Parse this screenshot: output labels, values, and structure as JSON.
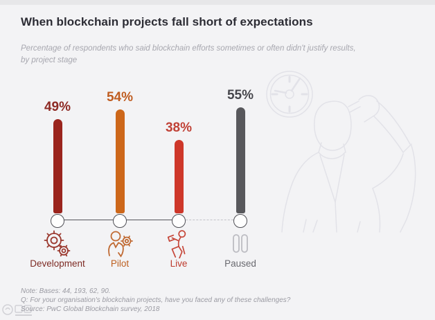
{
  "header": {
    "title": "When blockchain projects fall short of expectations",
    "subtitle_line1": "Percentage of respondents who said blockchain efforts sometimes or often didn't justify results,",
    "subtitle_line2": "by project stage"
  },
  "chart_data": {
    "type": "bar",
    "title": "When blockchain projects fall short of expectations",
    "subtitle": "Percentage of respondents who said blockchain efforts sometimes or often didn't justify results, by project stage",
    "categories": [
      "Development",
      "Pilot",
      "Live",
      "Paused"
    ],
    "values": [
      49,
      54,
      38,
      55
    ],
    "unit": "%",
    "xlabel": "Project stage",
    "ylabel": "Percentage of respondents",
    "ylim": [
      0,
      60
    ],
    "grid": false,
    "legend": "none",
    "bars": [
      {
        "label": "Development",
        "value": 49,
        "display": "49%",
        "icon": "gears-icon",
        "bar_color": "#9a241d",
        "pct_color": "#8d2a24",
        "label_color": "#7d2b24",
        "icon_color": "#9a382e",
        "connector_to_next": "solid"
      },
      {
        "label": "Pilot",
        "value": 54,
        "display": "54%",
        "icon": "person-gear-icon",
        "bar_color": "#cd671a",
        "pct_color": "#bf5c20",
        "label_color": "#bd5f1f",
        "icon_color": "#c06a33",
        "connector_to_next": "solid"
      },
      {
        "label": "Live",
        "value": 38,
        "display": "38%",
        "icon": "person-laptop-icon",
        "bar_color": "#ce372a",
        "pct_color": "#c04136",
        "label_color": "#bd3a2c",
        "icon_color": "#c6473a",
        "connector_to_next": "dashed"
      },
      {
        "label": "Paused",
        "value": 55,
        "display": "55%",
        "icon": "pause-icon",
        "bar_color": "#58585c",
        "pct_color": "#46464c",
        "label_color": "#69696f",
        "icon_color": "#bcbcc2",
        "connector_to_next": "none"
      }
    ]
  },
  "illustration": {
    "description": "faint line drawing of a wall clock and a person scratching their head",
    "stroke_color": "#e2e2e8"
  },
  "footer": {
    "note": "Note: Bases: 44, 193, 62, 90.",
    "question": "Q: For your organisation's blockchain projects, have you faced any of these challenges?",
    "source": "Source: PwC Global Blockchain survey, 2018"
  }
}
